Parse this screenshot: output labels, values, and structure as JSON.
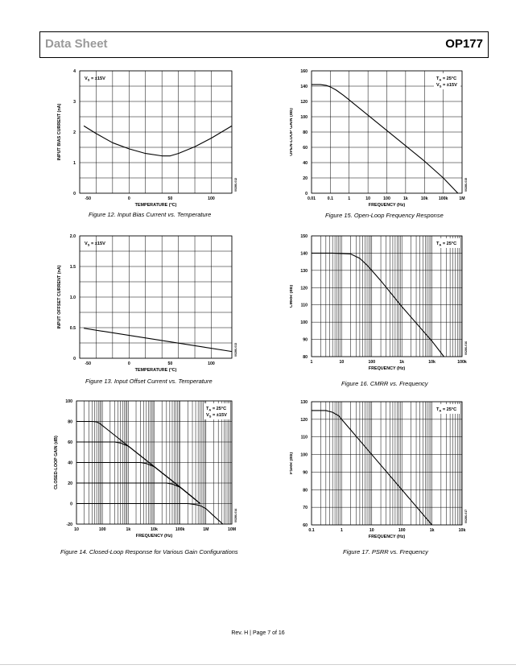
{
  "header": {
    "doc_type": "Data Sheet",
    "part_number": "OP177"
  },
  "footer": {
    "text": "Rev. H | Page 7 of 16"
  },
  "chart_data": [
    {
      "id": "fig12",
      "type": "line",
      "caption": "Figure 12. Input Bias Current vs. Temperature",
      "xlabel": "TEMPERATURE (°C)",
      "ylabel": "INPUT BIAS CURRENT (nA)",
      "xscale": "linear",
      "xlim": [
        -60,
        125
      ],
      "ylim": [
        0,
        4
      ],
      "xticks": [
        -50,
        0,
        50,
        100
      ],
      "yticks": [
        0,
        1,
        2,
        3,
        4
      ],
      "xgrid": [
        -60,
        -40,
        -20,
        0,
        20,
        40,
        60,
        80,
        100,
        125
      ],
      "ygrid": [
        0,
        0.5,
        1,
        1.5,
        2,
        2.5,
        3,
        3.5,
        4
      ],
      "annotations": [
        {
          "text": "V",
          "sub": "S",
          "rest": " = ±15V",
          "pos": "top-left"
        }
      ],
      "code": "00286-012",
      "series": [
        {
          "x": [
            -55,
            -40,
            -20,
            0,
            20,
            40,
            50,
            60,
            80,
            100,
            125
          ],
          "y": [
            2.2,
            1.95,
            1.65,
            1.45,
            1.3,
            1.22,
            1.22,
            1.3,
            1.52,
            1.8,
            2.2
          ]
        }
      ]
    },
    {
      "id": "fig15",
      "type": "line",
      "caption": "Figure 15. Open-Loop Frequency Response",
      "xlabel": "FREQUENCY (Hz)",
      "ylabel": "OPEN-LOOP GAIN (dB)",
      "xscale": "log",
      "xlim": [
        0.01,
        1000000
      ],
      "ylim": [
        0,
        160
      ],
      "xticks": [
        0.01,
        0.1,
        1,
        10,
        100,
        1000,
        10000,
        100000,
        1000000
      ],
      "xticklabels": [
        "0.01",
        "0.1",
        "1",
        "10",
        "100",
        "1k",
        "10k",
        "100k",
        "1M"
      ],
      "yticks": [
        0,
        20,
        40,
        60,
        80,
        100,
        120,
        140,
        160
      ],
      "xgrid": [
        0.01,
        0.1,
        1,
        10,
        100,
        1000,
        10000,
        100000,
        1000000
      ],
      "ygrid": [
        0,
        20,
        40,
        60,
        80,
        100,
        120,
        140,
        160
      ],
      "annotations": [
        {
          "text": "T",
          "sub": "A",
          "rest": " = 25°C",
          "pos": "top-right"
        },
        {
          "text": "V",
          "sub": "S",
          "rest": " = ±15V",
          "pos": "top-right-2"
        }
      ],
      "code": "00286-015",
      "series": [
        {
          "x": [
            0.01,
            0.03,
            0.06,
            0.1,
            0.2,
            0.5,
            1,
            10,
            100,
            1000,
            10000,
            100000,
            600000
          ],
          "y": [
            142,
            142,
            141,
            139,
            135,
            128,
            122,
            102,
            82,
            62,
            42,
            20,
            0
          ]
        }
      ]
    },
    {
      "id": "fig13",
      "type": "line",
      "caption": "Figure 13. Input Offset Current vs. Temperature",
      "xlabel": "TEMPERATURE (°C)",
      "ylabel": "INPUT OFFSET CURRENT (nA)",
      "xscale": "linear",
      "xlim": [
        -60,
        125
      ],
      "ylim": [
        0,
        2.0
      ],
      "xticks": [
        -50,
        0,
        50,
        100
      ],
      "yticks": [
        0,
        0.5,
        1.0,
        1.5,
        2.0
      ],
      "yticklabels": [
        "0",
        "0.5",
        "1.0",
        "1.5",
        "2.0"
      ],
      "xgrid": [
        -60,
        -40,
        -20,
        0,
        20,
        40,
        60,
        80,
        100,
        125
      ],
      "ygrid": [
        0,
        0.25,
        0.5,
        0.75,
        1.0,
        1.25,
        1.5,
        1.75,
        2.0
      ],
      "annotations": [
        {
          "text": "V",
          "sub": "S",
          "rest": " = ±15V",
          "pos": "top-left"
        }
      ],
      "code": "00286-013",
      "series": [
        {
          "x": [
            -55,
            125
          ],
          "y": [
            0.49,
            0.11
          ]
        }
      ]
    },
    {
      "id": "fig16",
      "type": "line",
      "caption": "Figure 16. CMRR vs. Frequency",
      "xlabel": "FREQUENCY (Hz)",
      "ylabel": "CMRR (dB)",
      "xscale": "log",
      "xlim": [
        1,
        100000
      ],
      "ylim": [
        80,
        150
      ],
      "xticks": [
        1,
        10,
        100,
        1000,
        10000,
        100000
      ],
      "xticklabels": [
        "1",
        "10",
        "100",
        "1k",
        "10k",
        "100k"
      ],
      "yticks": [
        80,
        90,
        100,
        110,
        120,
        130,
        140,
        150
      ],
      "ygrid": [
        80,
        90,
        100,
        110,
        120,
        130,
        140,
        150
      ],
      "minor_x_grid": true,
      "annotations": [
        {
          "text": "T",
          "sub": "A",
          "rest": " = 25°C",
          "pos": "top-right"
        }
      ],
      "code": "00286-016",
      "series": [
        {
          "x": [
            1,
            5,
            20,
            40,
            70,
            100,
            200,
            1000,
            10000,
            25000
          ],
          "y": [
            140,
            140,
            139.5,
            137,
            133,
            130,
            124,
            109,
            89,
            80
          ]
        }
      ]
    },
    {
      "id": "fig14",
      "type": "line",
      "caption": "Figure 14. Closed-Loop Response for Various Gain Configurations",
      "xlabel": "FREQUENCY (Hz)",
      "ylabel": "CLOSED-LOOP GAIN (dB)",
      "xscale": "log",
      "xlim": [
        10,
        10000000
      ],
      "ylim": [
        -20,
        100
      ],
      "xticks": [
        10,
        100,
        1000,
        10000,
        100000,
        1000000,
        10000000
      ],
      "xticklabels": [
        "10",
        "100",
        "1k",
        "10k",
        "100k",
        "1M",
        "10M"
      ],
      "yticks": [
        -20,
        0,
        20,
        40,
        60,
        80,
        100
      ],
      "ygrid": [
        -20,
        0,
        20,
        40,
        60,
        80,
        100
      ],
      "minor_x_grid": true,
      "annotations": [
        {
          "text": "T",
          "sub": "A",
          "rest": " = 25°C",
          "pos": "top-right"
        },
        {
          "text": "V",
          "sub": "S",
          "rest": " = ±15V",
          "pos": "top-right-2"
        }
      ],
      "code": "00286-014",
      "series": [
        {
          "x": [
            10,
            40,
            60,
            80,
            100,
            200,
            1000,
            10000,
            100000,
            600000
          ],
          "y": [
            80,
            80,
            79.5,
            78,
            76,
            70,
            56,
            36,
            16,
            0
          ]
        },
        {
          "x": [
            10,
            300,
            500,
            700,
            1000,
            2000,
            10000,
            100000,
            600000
          ],
          "y": [
            60,
            60,
            59,
            57.5,
            56,
            50,
            36,
            16,
            0
          ]
        },
        {
          "x": [
            10,
            3000,
            5000,
            7000,
            10000,
            20000,
            100000,
            600000
          ],
          "y": [
            40,
            40,
            39,
            37.5,
            36,
            30,
            16,
            0
          ]
        },
        {
          "x": [
            10,
            30000,
            50000,
            70000,
            100000,
            200000,
            600000
          ],
          "y": [
            20,
            20,
            19,
            17.5,
            16,
            10,
            0
          ]
        },
        {
          "x": [
            10,
            200000,
            400000,
            600000,
            1000000,
            2000000,
            4500000
          ],
          "y": [
            0,
            0,
            -1,
            -2,
            -5,
            -12,
            -20
          ]
        }
      ]
    },
    {
      "id": "fig17",
      "type": "line",
      "caption": "Figure 17. PSRR vs. Frequency",
      "xlabel": "FREQUENCY (Hz)",
      "ylabel": "PSRR (dB)",
      "xscale": "log",
      "xlim": [
        0.1,
        10000
      ],
      "ylim": [
        60,
        130
      ],
      "xticks": [
        0.1,
        1,
        10,
        100,
        1000,
        10000
      ],
      "xticklabels": [
        "0.1",
        "1",
        "10",
        "100",
        "1k",
        "10k"
      ],
      "yticks": [
        60,
        70,
        80,
        90,
        100,
        110,
        120,
        130
      ],
      "ygrid": [
        60,
        70,
        80,
        90,
        100,
        110,
        120,
        130
      ],
      "minor_x_grid": true,
      "annotations": [
        {
          "text": "T",
          "sub": "A",
          "rest": " = 25°C",
          "pos": "top-right"
        }
      ],
      "code": "00286-017",
      "series": [
        {
          "x": [
            0.1,
            0.3,
            0.5,
            0.8,
            1,
            2,
            10,
            100,
            1000
          ],
          "y": [
            125,
            125,
            124,
            122,
            120,
            114,
            100,
            80,
            60
          ]
        }
      ]
    }
  ]
}
